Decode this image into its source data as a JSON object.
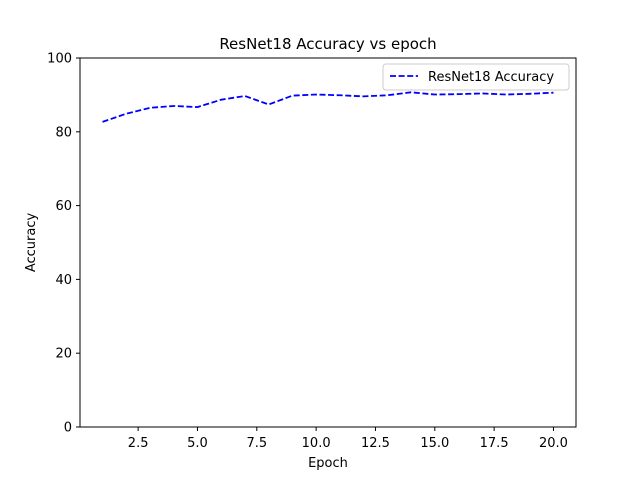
{
  "chart_data": {
    "type": "line",
    "title": "ResNet18 Accuracy vs epoch",
    "xlabel": "Epoch",
    "ylabel": "Accuracy",
    "xlim": [
      0.05,
      20.95
    ],
    "ylim": [
      0,
      100
    ],
    "xticks": [
      2.5,
      5.0,
      7.5,
      10.0,
      12.5,
      15.0,
      17.5,
      20.0
    ],
    "xtick_labels": [
      "2.5",
      "5.0",
      "7.5",
      "10.0",
      "12.5",
      "15.0",
      "17.5",
      "20.0"
    ],
    "yticks": [
      0,
      20,
      40,
      60,
      80,
      100
    ],
    "ytick_labels": [
      "0",
      "20",
      "40",
      "60",
      "80",
      "100"
    ],
    "grid": false,
    "legend_position": "top-right",
    "series": [
      {
        "name": "ResNet18 Accuracy",
        "color": "#0000ff",
        "line_style": "dashed",
        "x": [
          1,
          2,
          3,
          4,
          5,
          6,
          7,
          8,
          9,
          10,
          11,
          12,
          13,
          14,
          15,
          16,
          17,
          18,
          19,
          20
        ],
        "y": [
          82.7,
          84.9,
          86.5,
          87.0,
          86.7,
          88.7,
          89.7,
          87.4,
          89.8,
          90.1,
          89.9,
          89.6,
          89.9,
          90.7,
          90.1,
          90.2,
          90.4,
          90.1,
          90.3,
          90.6
        ]
      }
    ]
  }
}
